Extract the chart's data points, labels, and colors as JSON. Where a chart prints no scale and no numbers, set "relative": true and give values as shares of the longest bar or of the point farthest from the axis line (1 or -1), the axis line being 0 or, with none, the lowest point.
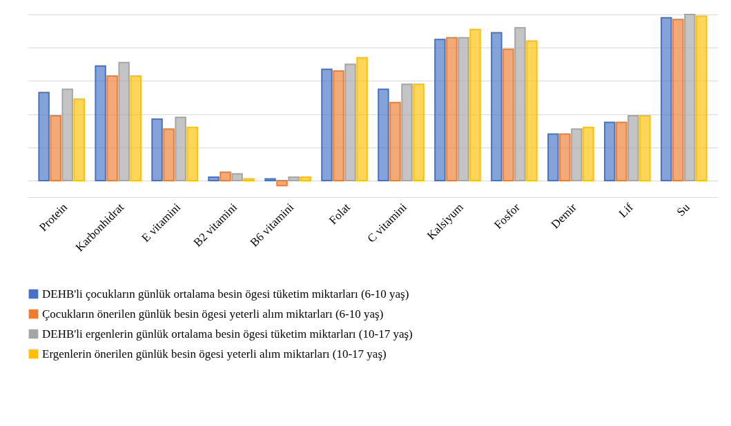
{
  "chart_data": {
    "type": "bar",
    "relative": true,
    "grid": "y",
    "legend": "bottom",
    "categories": [
      "Protein",
      "Karbonhidrat",
      "E vitamini",
      "B2 vitamini",
      "B6 vitamini",
      "Folat",
      "C vitamini",
      "Kalsiyum",
      "Fosfor",
      "Demir",
      "Lif",
      "Su"
    ],
    "series": [
      {
        "name": "DEHB'li çocukların günlük ortalama besin ögesi tüketim miktarları (6-10 yaş)",
        "color": "#4472c4",
        "values": [
          0.53,
          0.69,
          0.37,
          0.02,
          0.01,
          0.67,
          0.55,
          0.85,
          0.89,
          0.28,
          0.35,
          0.98
        ]
      },
      {
        "name": "Çocukların önerilen günlük besin ögesi yeterli alım miktarları (6-10 yaş)",
        "color": "#ed7d31",
        "values": [
          0.39,
          0.63,
          0.31,
          0.05,
          -0.03,
          0.66,
          0.47,
          0.86,
          0.79,
          0.28,
          0.35,
          0.97
        ]
      },
      {
        "name": "DEHB'li ergenlerin günlük ortalama besin ögesi tüketim miktarları (10-17 yaş)",
        "color": "#a5a5a5",
        "values": [
          0.55,
          0.71,
          0.38,
          0.04,
          0.02,
          0.7,
          0.58,
          0.86,
          0.92,
          0.31,
          0.39,
          1
        ]
      },
      {
        "name": "Ergenlerin önerilen günlük besin ögesi yeterli alım miktarları (10-17 yaş)",
        "color": "#ffc000",
        "values": [
          0.49,
          0.63,
          0.32,
          0.01,
          0.02,
          0.74,
          0.58,
          0.91,
          0.84,
          0.32,
          0.39,
          0.99
        ]
      }
    ]
  }
}
